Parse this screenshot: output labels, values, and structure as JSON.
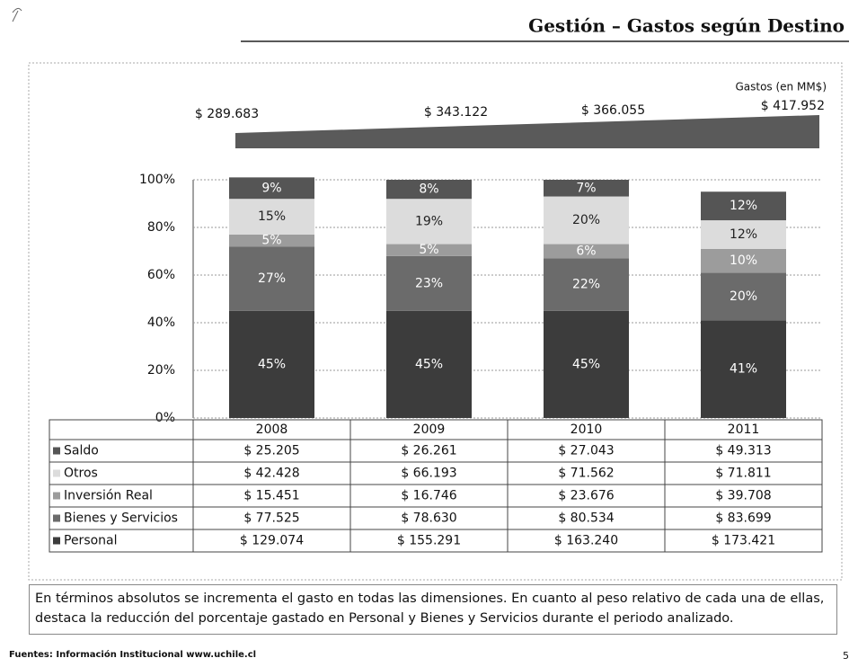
{
  "header": {
    "title": "Gestión – Gastos según Destino"
  },
  "totals": {
    "label": "Gastos (en MM$)",
    "values": [
      "$ 289.683",
      "$ 343.122",
      "$ 366.055",
      "$ 417.952"
    ]
  },
  "chart_data": {
    "type": "stacked_bar",
    "categories": [
      "2008",
      "2009",
      "2010",
      "2011"
    ],
    "series": [
      {
        "name": "Personal",
        "color": "#3c3c3c",
        "values": [
          45,
          45,
          45,
          41
        ],
        "value_labels": [
          "45%",
          "45%",
          "45%",
          "41%"
        ]
      },
      {
        "name": "Bienes y Servicios",
        "color": "#6b6b6b",
        "values": [
          27,
          23,
          22,
          20
        ],
        "value_labels": [
          "27%",
          "23%",
          "22%",
          "20%"
        ]
      },
      {
        "name": "Inversión Real",
        "color": "#9c9c9c",
        "values": [
          5,
          5,
          6,
          10
        ],
        "value_labels": [
          "5%",
          "5%",
          "6%",
          "10%"
        ]
      },
      {
        "name": "Otros",
        "color": "#dcdcdc",
        "values": [
          15,
          19,
          20,
          12
        ],
        "value_labels": [
          "15%",
          "19%",
          "20%",
          "12%"
        ]
      },
      {
        "name": "Saldo",
        "color": "#555555",
        "values": [
          9,
          8,
          7,
          12
        ],
        "value_labels": [
          "9%",
          "8%",
          "7%",
          "12%"
        ]
      }
    ],
    "ylim": [
      0,
      100
    ],
    "yticks": [
      {
        "value": 0,
        "label": "0%"
      },
      {
        "value": 20,
        "label": "20%"
      },
      {
        "value": 40,
        "label": "40%"
      },
      {
        "value": 60,
        "label": "60%"
      },
      {
        "value": 80,
        "label": "80%"
      },
      {
        "value": 100,
        "label": "100%"
      }
    ],
    "grid": true
  },
  "table": {
    "rows": [
      [
        "$ 25.205",
        "$ 26.261",
        "$ 27.043",
        "$ 49.313"
      ],
      [
        "$ 42.428",
        "$ 66.193",
        "$ 71.562",
        "$ 71.811"
      ],
      [
        "$ 15.451",
        "$ 16.746",
        "$ 23.676",
        "$ 39.708"
      ],
      [
        "$ 77.525",
        "$ 78.630",
        "$ 80.534",
        "$ 83.699"
      ],
      [
        "$ 129.074",
        "$ 155.291",
        "$ 163.240",
        "$ 173.421"
      ]
    ]
  },
  "note": "En términos absolutos se incrementa el gasto en todas las dimensiones. En cuanto al peso relativo de cada una de ellas, destaca la reducción del porcentaje gastado en Personal y Bienes y Servicios durante el periodo analizado.",
  "source": "Fuentes: Información Institucional www.uchile.cl",
  "page": "5"
}
